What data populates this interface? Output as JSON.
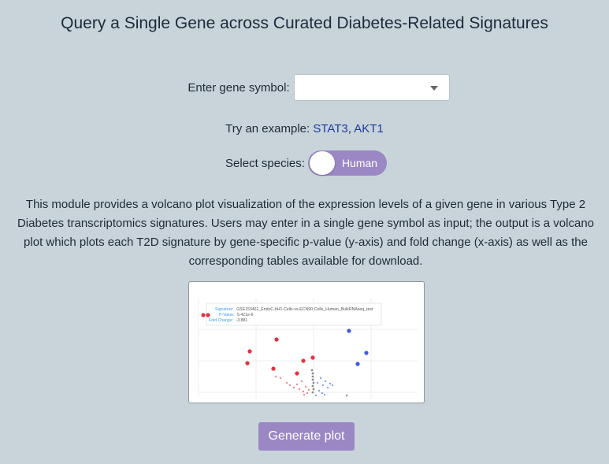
{
  "page": {
    "title": "Query a Single Gene across Curated Diabetes-Related Signatures"
  },
  "gene_input": {
    "label": "Enter gene symbol:",
    "value": ""
  },
  "examples": {
    "prefix": "Try an example: ",
    "items": [
      "STAT3",
      "AKT1"
    ],
    "separator": ", "
  },
  "species": {
    "label": "Select species:",
    "toggle_value": "Human"
  },
  "description": "This module provides a volcano plot visualization of the expression levels of a given gene in various Type 2 Diabetes transcriptomics signatures. Users may enter in a single gene symbol as input; the output is a volcano plot which plots each T2D signature by gene-specific p-value (y-axis) and fold change (x-axis) as well as the corresponding tables available for download.",
  "preview_plot": {
    "tooltip": {
      "signature_label": "Signature:",
      "signature_value": "GSE153462_EndoC-bH1-Cells-vs-ECN90-Cells_Human_BulkRNAseq_test",
      "pvalue_label": "P-Value:",
      "pvalue_value": "5.421e-6",
      "fold_label": "Fold Change:",
      "fold_value": "-3.881"
    },
    "colors": {
      "up": "#e8303c",
      "down": "#3c5be0",
      "neutral": "#8a8a8a",
      "tooltip_text": "#3aa0e0"
    }
  },
  "actions": {
    "generate_label": "Generate plot"
  }
}
